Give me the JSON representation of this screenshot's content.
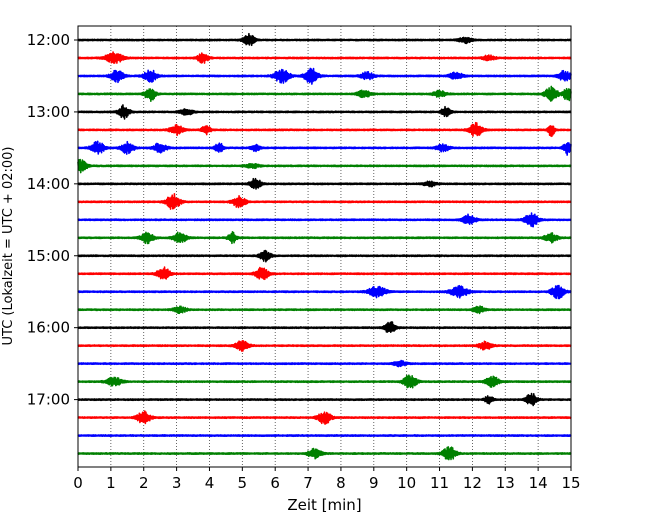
{
  "chart_data": {
    "type": "line",
    "xlabel": "Zeit  [min]",
    "ylabel": "UTC (Lokalzeit = UTC + 02:00)",
    "xlim": [
      0,
      15
    ],
    "x_ticks": [
      0,
      1,
      2,
      3,
      4,
      5,
      6,
      7,
      8,
      9,
      10,
      11,
      12,
      13,
      14,
      15
    ],
    "y_tick_labels": [
      "12:00",
      "13:00",
      "14:00",
      "15:00",
      "16:00",
      "17:00"
    ],
    "grid": "vertical dotted lines at each minute",
    "row_colors": [
      "#000000",
      "#ff0000",
      "#0000ff",
      "#008000"
    ],
    "rows": [
      {
        "start": "12:00",
        "events": [
          [
            5.2,
            1.0,
            0.25
          ],
          [
            11.8,
            0.5,
            0.3
          ]
        ]
      },
      {
        "start": "12:15",
        "events": [
          [
            1.1,
            0.9,
            0.4
          ],
          [
            3.8,
            0.8,
            0.25
          ],
          [
            12.5,
            0.4,
            0.3
          ]
        ]
      },
      {
        "start": "12:30",
        "events": [
          [
            1.2,
            1.0,
            0.3
          ],
          [
            2.2,
            1.0,
            0.3
          ],
          [
            6.2,
            1.1,
            0.35
          ],
          [
            7.1,
            1.3,
            0.3
          ],
          [
            8.8,
            0.6,
            0.3
          ],
          [
            11.5,
            0.6,
            0.3
          ],
          [
            14.8,
            0.8,
            0.3
          ]
        ]
      },
      {
        "start": "12:45",
        "events": [
          [
            2.2,
            1.1,
            0.25
          ],
          [
            8.7,
            0.6,
            0.3
          ],
          [
            11.0,
            0.5,
            0.3
          ],
          [
            14.4,
            1.1,
            0.3
          ],
          [
            14.9,
            1.1,
            0.2
          ]
        ]
      },
      {
        "start": "13:00",
        "events": [
          [
            1.4,
            1.1,
            0.25
          ],
          [
            3.3,
            0.5,
            0.3
          ],
          [
            11.2,
            0.9,
            0.2
          ]
        ]
      },
      {
        "start": "13:15",
        "events": [
          [
            3.0,
            0.8,
            0.3
          ],
          [
            3.9,
            0.7,
            0.2
          ],
          [
            12.1,
            1.1,
            0.3
          ],
          [
            14.4,
            1.0,
            0.15
          ]
        ]
      },
      {
        "start": "13:30",
        "events": [
          [
            0.6,
            1.0,
            0.3
          ],
          [
            1.5,
            0.9,
            0.3
          ],
          [
            2.5,
            0.8,
            0.3
          ],
          [
            4.3,
            0.8,
            0.2
          ],
          [
            5.4,
            0.5,
            0.2
          ],
          [
            11.1,
            0.6,
            0.3
          ],
          [
            14.9,
            1.1,
            0.2
          ]
        ]
      },
      {
        "start": "13:45",
        "events": [
          [
            0.1,
            1.1,
            0.25
          ],
          [
            5.3,
            0.4,
            0.3
          ]
        ]
      },
      {
        "start": "14:00",
        "events": [
          [
            5.4,
            0.9,
            0.25
          ],
          [
            10.7,
            0.4,
            0.3
          ]
        ]
      },
      {
        "start": "14:15",
        "events": [
          [
            2.9,
            1.3,
            0.3
          ],
          [
            4.9,
            0.9,
            0.3
          ]
        ]
      },
      {
        "start": "14:30",
        "events": [
          [
            11.9,
            0.8,
            0.3
          ],
          [
            13.8,
            1.1,
            0.3
          ]
        ]
      },
      {
        "start": "14:45",
        "events": [
          [
            2.1,
            0.9,
            0.3
          ],
          [
            3.1,
            0.9,
            0.3
          ],
          [
            4.7,
            0.9,
            0.2
          ],
          [
            14.4,
            0.7,
            0.3
          ]
        ]
      },
      {
        "start": "15:00",
        "events": [
          [
            5.7,
            0.9,
            0.25
          ]
        ]
      },
      {
        "start": "15:15",
        "events": [
          [
            2.6,
            1.0,
            0.3
          ],
          [
            5.6,
            1.0,
            0.3
          ]
        ]
      },
      {
        "start": "15:30",
        "events": [
          [
            9.1,
            0.9,
            0.4
          ],
          [
            11.6,
            0.9,
            0.4
          ],
          [
            14.6,
            1.1,
            0.3
          ]
        ]
      },
      {
        "start": "15:45",
        "events": [
          [
            3.1,
            0.5,
            0.3
          ],
          [
            12.2,
            0.5,
            0.3
          ]
        ]
      },
      {
        "start": "16:00",
        "events": [
          [
            9.5,
            1.0,
            0.25
          ]
        ]
      },
      {
        "start": "16:15",
        "events": [
          [
            5.0,
            0.8,
            0.3
          ],
          [
            12.4,
            0.7,
            0.3
          ]
        ]
      },
      {
        "start": "16:30",
        "events": [
          [
            9.8,
            0.4,
            0.3
          ]
        ]
      },
      {
        "start": "16:45",
        "events": [
          [
            1.1,
            0.7,
            0.35
          ],
          [
            10.1,
            1.1,
            0.3
          ],
          [
            12.6,
            0.9,
            0.3
          ]
        ]
      },
      {
        "start": "17:00",
        "events": [
          [
            13.8,
            1.0,
            0.25
          ],
          [
            12.5,
            0.6,
            0.2
          ]
        ]
      },
      {
        "start": "17:15",
        "events": [
          [
            2.0,
            1.0,
            0.3
          ],
          [
            7.5,
            1.0,
            0.3
          ]
        ]
      },
      {
        "start": "17:30",
        "events": []
      },
      {
        "start": "17:45",
        "events": [
          [
            7.2,
            0.8,
            0.3
          ],
          [
            11.3,
            1.1,
            0.3
          ]
        ]
      }
    ]
  }
}
